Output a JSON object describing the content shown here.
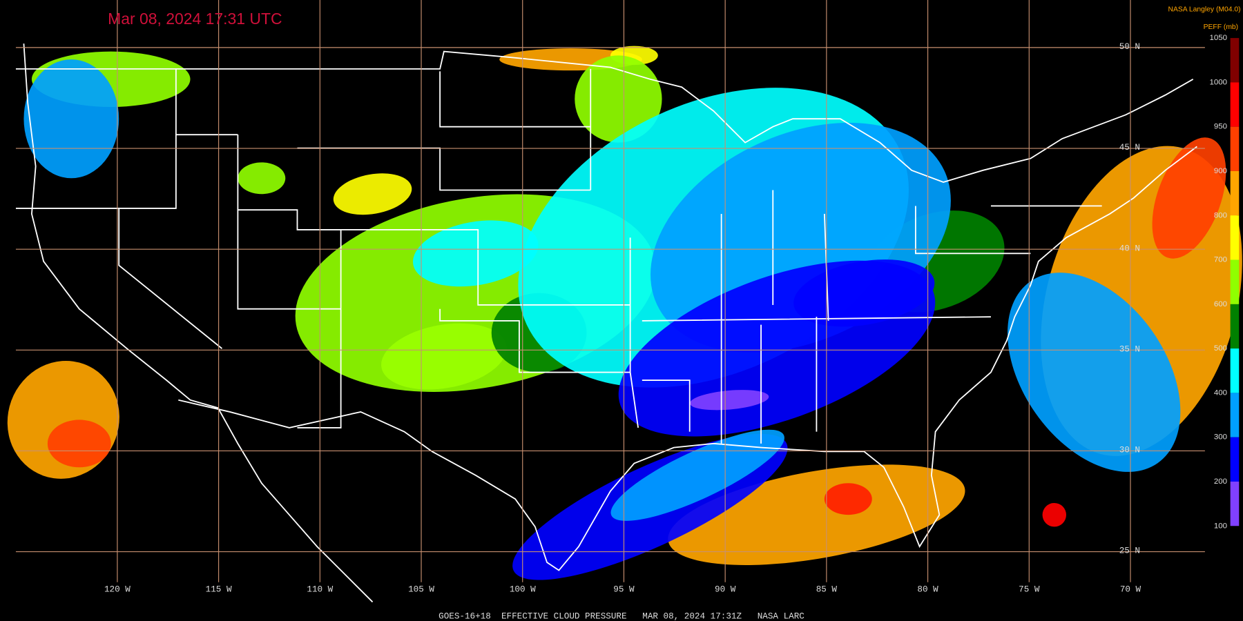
{
  "title": "Mar 08, 2024 17:31 UTC",
  "credit": "NASA Langley (M04.0)",
  "legend": {
    "title": "PEFF (mb)",
    "ticks": [
      1050,
      1000,
      950,
      900,
      800,
      700,
      600,
      500,
      400,
      300,
      200,
      100
    ]
  },
  "longitude_labels": [
    "120 W",
    "115 W",
    "110 W",
    "105 W",
    "100 W",
    "95 W",
    "90 W",
    "85 W",
    "80 W",
    "75 W",
    "70 W"
  ],
  "latitude_labels": [
    "50 N",
    "45 N",
    "40 N",
    "35 N",
    "30 N",
    "25 N"
  ],
  "footer": "GOES-16+18  EFFECTIVE CLOUD PRESSURE   MAR 08, 2024 17:31Z   NASA LARC"
}
